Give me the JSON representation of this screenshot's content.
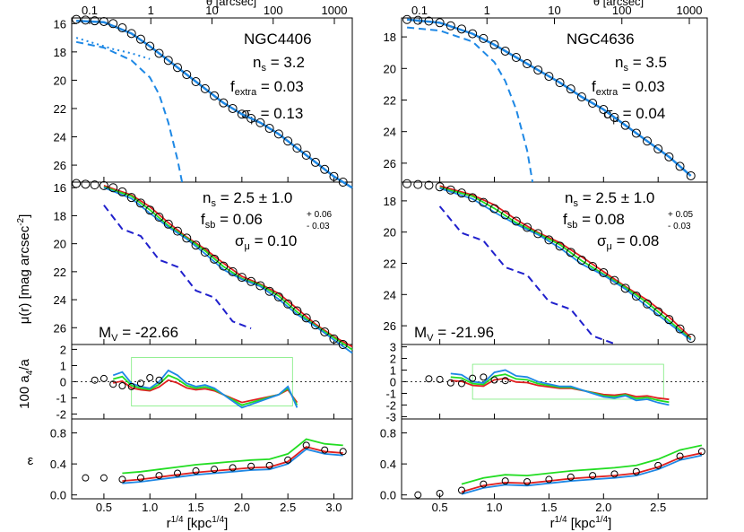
{
  "figure": {
    "ylabel_main": "μ(r)  [mag arcsec",
    "ylabel_main_sup": "-2",
    "ylabel_main_end": "]",
    "ylabel_a4": "100 a",
    "ylabel_a4_sub": "4",
    "ylabel_a4_end": "/a",
    "ylabel_eps": "ε",
    "xlabel_main": "r",
    "xlabel_sup": "1/4",
    "xlabel_mid": " [kpc",
    "xlabel_sup2": "1/4",
    "xlabel_end": "]",
    "top_axis_label": "θ [arcsec]"
  },
  "colors": {
    "model": "#1e88e5",
    "disk": "#5050ff",
    "red": "#e02020",
    "green": "#22dd22",
    "purple": "#2020cc",
    "points": "#000000",
    "dotted": "#333333"
  },
  "panels": [
    {
      "name": "NGC4406",
      "n_s": "n",
      "n_s_sub": "s",
      "n_s_val": " = 3.2",
      "f_extra": "f",
      "f_extra_sub": "extra",
      "f_extra_val": " = 0.03",
      "sigma": "σ",
      "sigma_sub": "μ",
      "sigma_val": " = 0.13",
      "mid_n": "n",
      "mid_n_sub": "s",
      "mid_n_val": " = 2.5 ± 1.0",
      "mid_f": "f",
      "mid_f_sub": "sb",
      "mid_f_val": " = 0.06",
      "mid_f_up": "+ 0.06",
      "mid_f_dn": "- 0.03",
      "mid_sigma": "σ",
      "mid_sigma_sub": "μ",
      "mid_sigma_val": " = 0.10",
      "mv": "M",
      "mv_sub": "V",
      "mv_val": " = -22.66",
      "x_ticks": [
        "0.5",
        "1.0",
        "1.5",
        "2.0",
        "2.5",
        "3.0"
      ],
      "top_ticks": [
        "0.1",
        "1",
        "10",
        "100",
        "1000"
      ],
      "mu_ticks": [
        "16",
        "18",
        "20",
        "22",
        "24",
        "26"
      ],
      "a4_ticks": [
        "2",
        "1",
        "0",
        "-1",
        "-2"
      ],
      "eps_ticks": [
        "0.8",
        "0.4",
        "0.0"
      ],
      "chart_data": {
        "type": "line",
        "title": "NGC4406",
        "xlim": [
          0.15,
          3.2
        ],
        "ylim_mu": [
          27.2,
          15.6
        ],
        "xlabel": "r^1/4 [kpc^1/4]",
        "ylabel": "μ(r) [mag arcsec^-2]",
        "data_points": {
          "x": [
            0.2,
            0.3,
            0.4,
            0.5,
            0.6,
            0.7,
            0.8,
            0.9,
            1.0,
            1.1,
            1.2,
            1.3,
            1.4,
            1.5,
            1.6,
            1.7,
            1.8,
            1.9,
            2.0,
            2.1,
            2.2,
            2.3,
            2.4,
            2.5,
            2.6,
            2.7,
            2.8,
            2.9,
            3.0,
            3.1
          ],
          "y": [
            15.7,
            15.75,
            15.8,
            15.85,
            16.0,
            16.3,
            16.7,
            17.1,
            17.6,
            18.1,
            18.6,
            19.1,
            19.6,
            20.1,
            20.6,
            21.1,
            21.6,
            22.0,
            22.4,
            22.7,
            23.0,
            23.4,
            23.8,
            24.3,
            24.8,
            25.3,
            25.8,
            26.3,
            26.8,
            27.2
          ]
        },
        "model_mu": {
          "x": [
            0.2,
            0.5,
            0.8,
            1.0,
            1.2,
            1.4,
            1.6,
            1.8,
            2.0,
            2.2,
            2.4,
            2.6,
            2.8,
            3.0,
            3.2
          ],
          "y": [
            15.8,
            15.9,
            16.7,
            17.6,
            18.6,
            19.6,
            20.6,
            21.6,
            22.4,
            23.0,
            23.8,
            24.8,
            25.8,
            26.8,
            27.6
          ]
        },
        "inner_component": {
          "x": [
            0.2,
            0.5,
            0.8,
            1.0,
            1.1,
            1.2,
            1.3,
            1.35
          ],
          "y": [
            17.3,
            17.7,
            18.6,
            19.8,
            21.0,
            23.0,
            25.6,
            27.2
          ]
        },
        "outer_dotted": {
          "x": [
            0.2,
            0.4,
            0.6,
            0.8,
            0.9,
            1.0
          ],
          "y": [
            17.0,
            17.4,
            17.8,
            18.1,
            18.3,
            18.5
          ]
        },
        "ellipticity": {
          "x": [
            0.3,
            0.5,
            0.7,
            0.9,
            1.1,
            1.3,
            1.5,
            1.7,
            1.9,
            2.1,
            2.3,
            2.5,
            2.7,
            2.9,
            3.1
          ],
          "y": [
            0.22,
            0.22,
            0.2,
            0.22,
            0.25,
            0.28,
            0.31,
            0.33,
            0.35,
            0.37,
            0.38,
            0.45,
            0.64,
            0.58,
            0.56
          ]
        },
        "a4": {
          "x": [
            0.6,
            0.7,
            0.8,
            0.9,
            1.0,
            1.1,
            1.2,
            1.3,
            1.4,
            1.5,
            1.6,
            1.7,
            1.8,
            1.9,
            2.0,
            2.1,
            2.2,
            2.3,
            2.4,
            2.5,
            2.6
          ],
          "y": [
            0.2,
            0.4,
            -0.3,
            -0.5,
            -0.6,
            -0.2,
            0.5,
            0.2,
            -0.3,
            -0.5,
            -0.4,
            -0.6,
            -1.0,
            -1.4,
            -1.8,
            -1.6,
            -1.4,
            -1.2,
            -1.0,
            -0.5,
            -1.8
          ]
        }
      }
    },
    {
      "name": "NGC4636",
      "n_s": "n",
      "n_s_sub": "s",
      "n_s_val": " = 3.5",
      "f_extra": "f",
      "f_extra_sub": "extra",
      "f_extra_val": " = 0.03",
      "sigma": "σ",
      "sigma_sub": "μ",
      "sigma_val": " = 0.04",
      "mid_n": "n",
      "mid_n_sub": "s",
      "mid_n_val": " = 2.5 ± 1.0",
      "mid_f": "f",
      "mid_f_sub": "sb",
      "mid_f_val": " = 0.08",
      "mid_f_up": "+ 0.05",
      "mid_f_dn": "- 0.03",
      "mid_sigma": "σ",
      "mid_sigma_sub": "μ",
      "mid_sigma_val": " = 0.08",
      "mv": "M",
      "mv_sub": "V",
      "mv_val": " = -21.96",
      "x_ticks": [
        "0.5",
        "1.0",
        "1.5",
        "2.0",
        "2.5"
      ],
      "top_ticks": [
        "0.1",
        "1",
        "10",
        "100",
        "1000"
      ],
      "mu_ticks": [
        "18",
        "20",
        "22",
        "24",
        "26"
      ],
      "a4_ticks": [
        "3",
        "2",
        "1",
        "0",
        "-1",
        "-2",
        "-3"
      ],
      "eps_ticks": [
        "0.8",
        "0.4",
        "0.0"
      ],
      "chart_data": {
        "type": "line",
        "title": "NGC4636",
        "xlim": [
          0.15,
          2.95
        ],
        "ylim_mu": [
          27.2,
          16.8
        ],
        "xlabel": "r^1/4 [kpc^1/4]",
        "ylabel": "μ(r) [mag arcsec^-2]",
        "data_points": {
          "x": [
            0.2,
            0.3,
            0.4,
            0.5,
            0.6,
            0.7,
            0.8,
            0.9,
            1.0,
            1.1,
            1.2,
            1.3,
            1.4,
            1.5,
            1.6,
            1.7,
            1.8,
            1.9,
            2.0,
            2.1,
            2.2,
            2.3,
            2.4,
            2.5,
            2.6,
            2.7,
            2.8
          ],
          "y": [
            16.9,
            16.95,
            17.0,
            17.1,
            17.3,
            17.5,
            17.8,
            18.1,
            18.5,
            18.9,
            19.3,
            19.7,
            20.1,
            20.5,
            20.9,
            21.3,
            21.8,
            22.2,
            22.6,
            23.1,
            23.6,
            24.1,
            24.6,
            25.1,
            25.6,
            26.2,
            26.8
          ]
        },
        "model_mu": {
          "x": [
            0.2,
            0.5,
            0.8,
            1.0,
            1.2,
            1.4,
            1.6,
            1.8,
            2.0,
            2.2,
            2.4,
            2.6,
            2.8
          ],
          "y": [
            16.9,
            17.1,
            17.8,
            18.5,
            19.3,
            20.1,
            20.9,
            21.8,
            22.6,
            23.6,
            24.6,
            25.6,
            26.8
          ]
        },
        "inner_component": {
          "x": [
            0.2,
            0.5,
            0.8,
            1.0,
            1.1,
            1.2,
            1.3,
            1.35
          ],
          "y": [
            17.4,
            17.6,
            18.3,
            19.6,
            20.8,
            22.6,
            25.2,
            27.2
          ]
        },
        "ellipticity": {
          "x": [
            0.3,
            0.5,
            0.7,
            0.9,
            1.1,
            1.3,
            1.5,
            1.7,
            1.9,
            2.1,
            2.3,
            2.5,
            2.7,
            2.9
          ],
          "y": [
            0.0,
            0.02,
            0.06,
            0.14,
            0.18,
            0.17,
            0.2,
            0.23,
            0.25,
            0.27,
            0.3,
            0.38,
            0.5,
            0.56
          ]
        },
        "a4": {
          "x": [
            0.6,
            0.7,
            0.8,
            0.9,
            1.0,
            1.1,
            1.2,
            1.3,
            1.4,
            1.5,
            1.6,
            1.7,
            1.8,
            1.9,
            2.0,
            2.1,
            2.2,
            2.3,
            2.4,
            2.5,
            2.6
          ],
          "y": [
            0.5,
            0.4,
            -0.2,
            -0.3,
            0.6,
            0.8,
            0.3,
            0.2,
            -0.2,
            -0.4,
            -0.6,
            -0.6,
            -0.9,
            -1.2,
            -1.5,
            -1.6,
            -1.4,
            -1.8,
            -1.7,
            -2.0,
            -2.2
          ]
        }
      }
    }
  ]
}
